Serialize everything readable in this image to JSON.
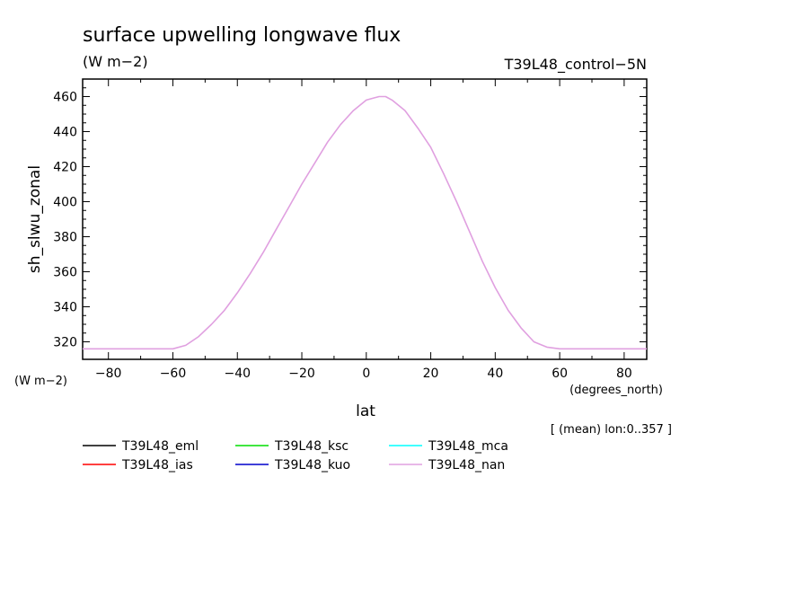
{
  "header": {
    "title": "surface upwelling longwave flux",
    "units": "(W m−2)",
    "run_label": "T39L48_control−5N"
  },
  "y_axis_units": "(W m−2)",
  "x_axis_units": "(degrees_north)",
  "averaging_note": "[ (mean) lon:0..357 ]",
  "chart_data": {
    "type": "line",
    "title": "surface upwelling longwave flux",
    "xlabel": "lat",
    "ylabel": "sh_slwu_zonal",
    "xlim": [
      -88,
      87
    ],
    "ylim": [
      310,
      470
    ],
    "x_ticks": [
      -80,
      -60,
      -40,
      -20,
      0,
      20,
      40,
      60,
      80
    ],
    "x_tick_labels": [
      "−80",
      "−60",
      "−40",
      "−20",
      "0",
      "20",
      "40",
      "60",
      "80"
    ],
    "y_ticks": [
      320,
      340,
      360,
      380,
      400,
      420,
      440,
      460
    ],
    "y_tick_labels": [
      "320",
      "340",
      "360",
      "380",
      "400",
      "420",
      "440",
      "460"
    ],
    "legend_position": "bottom",
    "series": [
      {
        "name": "T39L48_eml",
        "color": "#000000",
        "x": [],
        "y": []
      },
      {
        "name": "T39L48_ias",
        "color": "#ff0000",
        "x": [],
        "y": []
      },
      {
        "name": "T39L48_ksc",
        "color": "#00dd00",
        "x": [],
        "y": []
      },
      {
        "name": "T39L48_kuo",
        "color": "#0000cc",
        "x": [],
        "y": []
      },
      {
        "name": "T39L48_mca",
        "color": "#00ffff",
        "x": [],
        "y": []
      },
      {
        "name": "T39L48_nan",
        "color": "#e0a0e0",
        "x": [
          -88,
          -80,
          -70,
          -60,
          -56,
          -52,
          -48,
          -44,
          -40,
          -36,
          -32,
          -28,
          -24,
          -20,
          -16,
          -12,
          -8,
          -4,
          0,
          2,
          4,
          6,
          8,
          12,
          16,
          20,
          24,
          28,
          32,
          36,
          40,
          44,
          48,
          52,
          56,
          60,
          70,
          80,
          87
        ],
        "y": [
          316,
          316,
          316,
          316,
          318,
          323,
          330,
          338,
          348,
          359,
          371,
          384,
          397,
          410,
          422,
          434,
          444,
          452,
          458,
          459,
          460,
          460,
          458,
          452,
          442,
          431,
          416,
          400,
          383,
          366,
          351,
          338,
          328,
          320,
          317,
          316,
          316,
          316,
          316
        ]
      }
    ]
  }
}
